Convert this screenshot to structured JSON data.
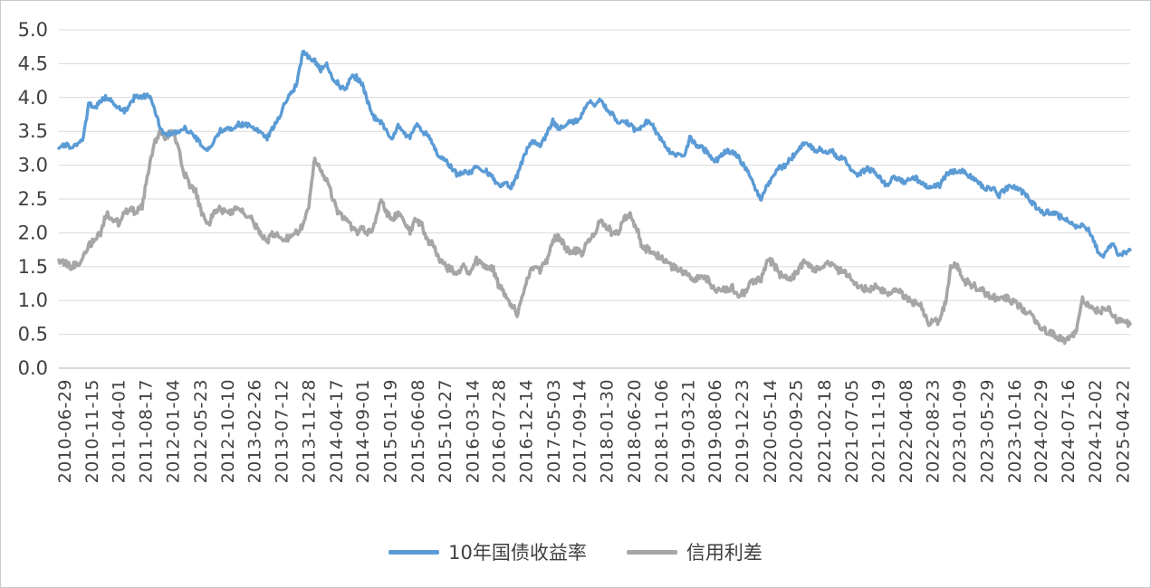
{
  "chart": {
    "colors": {
      "series1": "#5B9BD5",
      "series2": "#A6A6A6",
      "grid": "#D9D9D9",
      "axis": "#BFBFBF",
      "text": "#404040",
      "background": "#FFFFFF"
    }
  },
  "chart_data": {
    "type": "line",
    "title": "",
    "xlabel": "",
    "ylabel": "",
    "grid": true,
    "legend_position": "bottom",
    "ylim": [
      0.0,
      5.0
    ],
    "ytick_step": 0.5,
    "ytick_labels": [
      "0.0",
      "0.5",
      "1.0",
      "1.5",
      "2.0",
      "2.5",
      "3.0",
      "3.5",
      "4.0",
      "4.5",
      "5.0"
    ],
    "x_start_month": "2010-06",
    "x_interval": "monthly",
    "xtick_labels": [
      "2010-06-29",
      "2010-11-15",
      "2011-04-01",
      "2011-08-17",
      "2012-01-04",
      "2012-05-23",
      "2012-10-10",
      "2013-02-26",
      "2013-07-12",
      "2013-11-28",
      "2014-04-17",
      "2014-09-01",
      "2015-01-19",
      "2015-06-08",
      "2015-10-27",
      "2016-03-14",
      "2016-07-28",
      "2016-12-14",
      "2017-05-03",
      "2017-09-14",
      "2018-01-30",
      "2018-06-20",
      "2018-11-06",
      "2019-03-21",
      "2019-08-06",
      "2019-12-23",
      "2020-05-14",
      "2020-09-25",
      "2021-02-18",
      "2021-07-05",
      "2021-11-19",
      "2022-04-08",
      "2022-08-23",
      "2023-01-09",
      "2023-05-29",
      "2023-10-16",
      "2024-02-29",
      "2024-07-16",
      "2024-12-02",
      "2025-04-22"
    ],
    "series": [
      {
        "name": "10年国债收益率",
        "color": "#5B9BD5",
        "values": [
          3.25,
          3.3,
          3.28,
          3.3,
          3.35,
          3.9,
          3.85,
          3.95,
          4.0,
          3.95,
          3.85,
          3.8,
          3.9,
          4.05,
          4.0,
          4.05,
          3.85,
          3.55,
          3.45,
          3.45,
          3.5,
          3.55,
          3.5,
          3.4,
          3.3,
          3.25,
          3.35,
          3.5,
          3.55,
          3.55,
          3.6,
          3.6,
          3.6,
          3.55,
          3.45,
          3.4,
          3.55,
          3.7,
          3.95,
          4.05,
          4.2,
          4.7,
          4.6,
          4.55,
          4.4,
          4.5,
          4.3,
          4.2,
          4.1,
          4.3,
          4.3,
          4.2,
          3.9,
          3.7,
          3.65,
          3.5,
          3.4,
          3.6,
          3.45,
          3.4,
          3.6,
          3.5,
          3.45,
          3.3,
          3.1,
          3.1,
          2.95,
          2.85,
          2.9,
          2.9,
          2.95,
          2.95,
          2.9,
          2.8,
          2.7,
          2.75,
          2.68,
          2.85,
          3.1,
          3.3,
          3.35,
          3.3,
          3.45,
          3.65,
          3.55,
          3.6,
          3.65,
          3.65,
          3.75,
          3.95,
          3.9,
          3.95,
          3.85,
          3.75,
          3.6,
          3.65,
          3.6,
          3.5,
          3.6,
          3.65,
          3.55,
          3.4,
          3.3,
          3.15,
          3.15,
          3.1,
          3.4,
          3.3,
          3.25,
          3.2,
          3.05,
          3.1,
          3.2,
          3.2,
          3.15,
          3.0,
          2.85,
          2.65,
          2.5,
          2.7,
          2.85,
          2.95,
          3.0,
          3.1,
          3.2,
          3.3,
          3.3,
          3.2,
          3.25,
          3.2,
          3.2,
          3.1,
          3.1,
          2.95,
          2.85,
          2.9,
          2.95,
          2.9,
          2.8,
          2.7,
          2.8,
          2.8,
          2.75,
          2.8,
          2.8,
          2.75,
          2.65,
          2.7,
          2.7,
          2.85,
          2.9,
          2.9,
          2.9,
          2.85,
          2.8,
          2.7,
          2.65,
          2.65,
          2.55,
          2.65,
          2.7,
          2.65,
          2.6,
          2.5,
          2.4,
          2.3,
          2.3,
          2.3,
          2.25,
          2.2,
          2.15,
          2.1,
          2.1,
          2.05,
          1.85,
          1.65,
          1.7,
          1.85,
          1.65,
          1.7,
          1.75
        ]
      },
      {
        "name": "信用利差",
        "color": "#A6A6A6",
        "values": [
          1.6,
          1.55,
          1.5,
          1.55,
          1.6,
          1.8,
          1.9,
          2.0,
          2.3,
          2.2,
          2.15,
          2.3,
          2.35,
          2.3,
          2.4,
          2.9,
          3.3,
          3.5,
          3.4,
          3.55,
          3.3,
          2.9,
          2.7,
          2.6,
          2.3,
          2.1,
          2.3,
          2.35,
          2.3,
          2.3,
          2.35,
          2.3,
          2.25,
          2.1,
          2.0,
          1.85,
          2.0,
          1.95,
          1.9,
          1.95,
          2.0,
          2.1,
          2.4,
          3.1,
          2.9,
          2.8,
          2.5,
          2.3,
          2.2,
          2.1,
          2.0,
          2.05,
          2.0,
          2.1,
          2.5,
          2.3,
          2.2,
          2.3,
          2.2,
          2.0,
          2.2,
          2.1,
          1.9,
          1.8,
          1.6,
          1.5,
          1.45,
          1.4,
          1.5,
          1.4,
          1.6,
          1.55,
          1.5,
          1.45,
          1.2,
          1.1,
          0.95,
          0.8,
          1.1,
          1.4,
          1.5,
          1.45,
          1.6,
          1.9,
          1.95,
          1.8,
          1.7,
          1.75,
          1.7,
          1.9,
          2.0,
          2.2,
          2.1,
          2.0,
          2.0,
          2.2,
          2.25,
          2.1,
          1.8,
          1.75,
          1.7,
          1.65,
          1.6,
          1.5,
          1.45,
          1.4,
          1.35,
          1.3,
          1.35,
          1.3,
          1.2,
          1.15,
          1.15,
          1.2,
          1.1,
          1.1,
          1.25,
          1.3,
          1.3,
          1.6,
          1.55,
          1.4,
          1.35,
          1.35,
          1.4,
          1.55,
          1.55,
          1.45,
          1.5,
          1.55,
          1.5,
          1.45,
          1.4,
          1.35,
          1.25,
          1.2,
          1.15,
          1.2,
          1.15,
          1.1,
          1.1,
          1.15,
          1.05,
          1.0,
          0.95,
          0.9,
          0.65,
          0.7,
          0.7,
          1.0,
          1.55,
          1.5,
          1.3,
          1.25,
          1.2,
          1.15,
          1.1,
          1.05,
          1.0,
          1.05,
          1.0,
          0.95,
          0.85,
          0.8,
          0.7,
          0.6,
          0.55,
          0.5,
          0.45,
          0.42,
          0.45,
          0.55,
          1.05,
          0.9,
          0.85,
          0.85,
          0.9,
          0.8,
          0.7,
          0.68,
          0.65
        ]
      }
    ]
  }
}
